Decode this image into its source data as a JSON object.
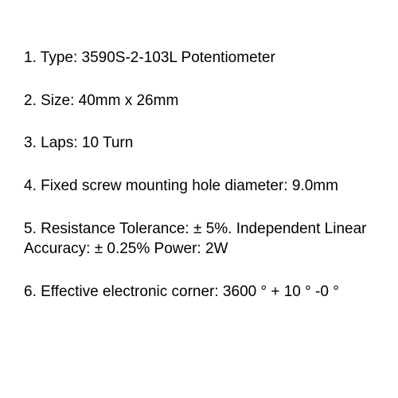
{
  "specs": {
    "items": [
      "1. Type: 3590S-2-103L Potentiometer",
      "2. Size: 40mm x 26mm",
      "3. Laps: 10 Turn",
      "4. Fixed screw mounting hole diameter: 9.0mm",
      "5. Resistance Tolerance: ± 5%. Independent Linear Accuracy: ± 0.25% Power: 2W",
      "6. Effective electronic corner: 3600 ° + 10 ° -0 °"
    ],
    "text_color": "#000000",
    "background_color": "#ffffff",
    "font_size": 19,
    "line_gap": 28
  }
}
